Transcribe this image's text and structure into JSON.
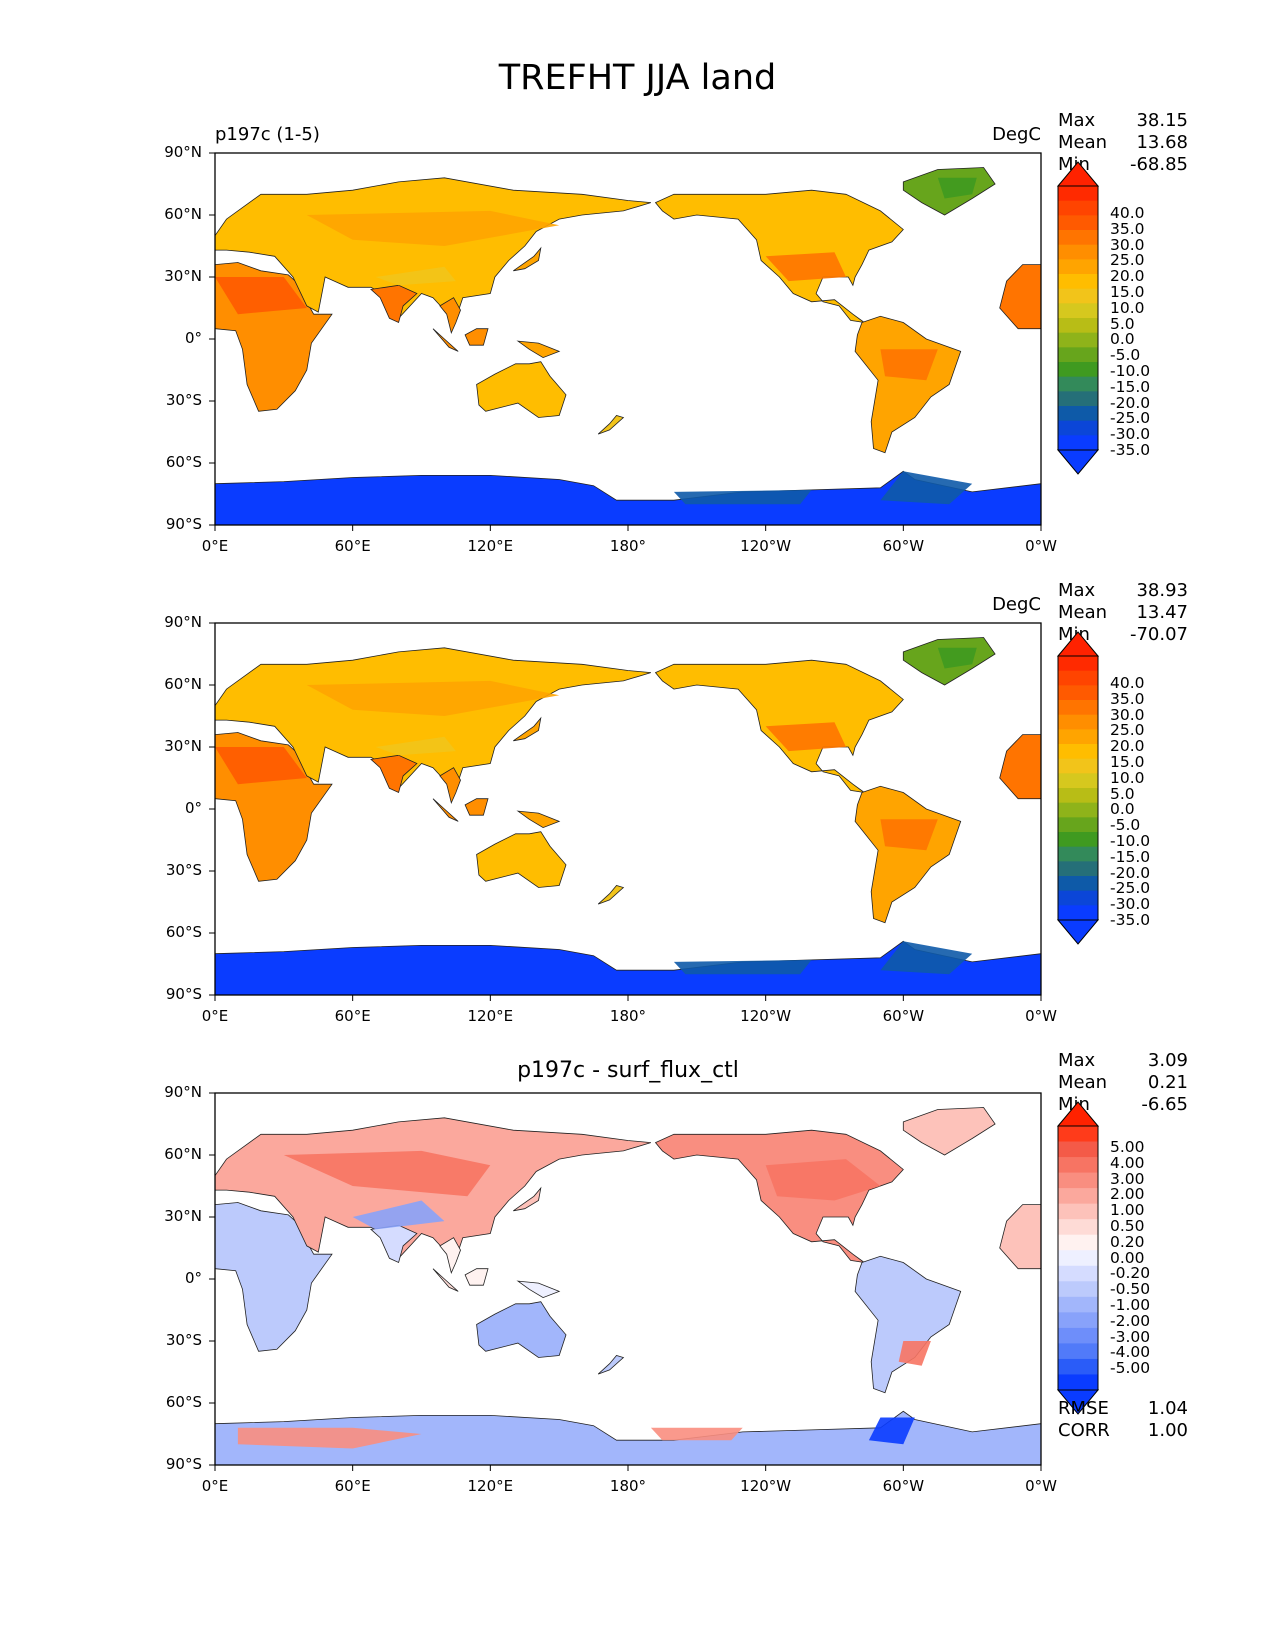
{
  "figure_title": "TREFHT JJA land",
  "axes": {
    "lat_ticks": [
      "90°N",
      "60°N",
      "30°N",
      "0°",
      "30°S",
      "60°S",
      "90°S"
    ],
    "lon_ticks": [
      "0°E",
      "60°E",
      "120°E",
      "180°",
      "120°W",
      "60°W",
      "0°W"
    ]
  },
  "panels": [
    {
      "name": "test",
      "left_title": "p197c (1-5)",
      "center_title": "",
      "units": "DegC",
      "stats": [
        {
          "label": "Max",
          "value": "38.15"
        },
        {
          "label": "Mean",
          "value": "13.68"
        },
        {
          "label": "Min",
          "value": "-68.85"
        }
      ],
      "colorbar": {
        "labels": [
          "40.0",
          "35.0",
          "30.0",
          "25.0",
          "20.0",
          "15.0",
          "10.0",
          "5.0",
          "0.0",
          "-5.0",
          "-10.0",
          "-15.0",
          "-20.0",
          "-25.0",
          "-30.0",
          "-35.0"
        ],
        "colors": [
          "#ff2a00",
          "#ff4400",
          "#ff5a00",
          "#ff7400",
          "#ff8e00",
          "#ffa400",
          "#ffbd00",
          "#f2c41a",
          "#d6c81e",
          "#b8bd16",
          "#8fb31a",
          "#67a51c",
          "#3f9a20",
          "#338a5a",
          "#256f78",
          "#0e5aa8",
          "#0b46d8",
          "#0a3cff"
        ],
        "extend_top": "#ff2200",
        "extend_bottom": "#0a3cff"
      },
      "metrics": []
    },
    {
      "name": "reference",
      "left_title": "",
      "center_title": "",
      "units": "DegC",
      "stats": [
        {
          "label": "Max",
          "value": "38.93"
        },
        {
          "label": "Mean",
          "value": "13.47"
        },
        {
          "label": "Min",
          "value": "-70.07"
        }
      ],
      "colorbar": {
        "labels": [
          "40.0",
          "35.0",
          "30.0",
          "25.0",
          "20.0",
          "15.0",
          "10.0",
          "5.0",
          "0.0",
          "-5.0",
          "-10.0",
          "-15.0",
          "-20.0",
          "-25.0",
          "-30.0",
          "-35.0"
        ],
        "colors": [
          "#ff2a00",
          "#ff4400",
          "#ff5a00",
          "#ff7400",
          "#ff8e00",
          "#ffa400",
          "#ffbd00",
          "#f2c41a",
          "#d6c81e",
          "#b8bd16",
          "#8fb31a",
          "#67a51c",
          "#3f9a20",
          "#338a5a",
          "#256f78",
          "#0e5aa8",
          "#0b46d8",
          "#0a3cff"
        ],
        "extend_top": "#ff2200",
        "extend_bottom": "#0a3cff"
      },
      "metrics": []
    },
    {
      "name": "difference",
      "left_title": "",
      "center_title": "p197c - surf_flux_ctl",
      "units": "",
      "stats": [
        {
          "label": "Max",
          "value": "3.09"
        },
        {
          "label": "Mean",
          "value": "0.21"
        },
        {
          "label": "Min",
          "value": "-6.65"
        }
      ],
      "colorbar": {
        "labels": [
          "5.00",
          "4.00",
          "3.00",
          "2.00",
          "1.00",
          "0.50",
          "0.20",
          "0.00",
          "-0.20",
          "-0.50",
          "-1.00",
          "-2.00",
          "-3.00",
          "-4.00",
          "-5.00"
        ],
        "colors": [
          "#ff3b1a",
          "#f45a48",
          "#f77463",
          "#f98e80",
          "#fba89d",
          "#fdc2ba",
          "#fedbd6",
          "#fff2f0",
          "#eef0ff",
          "#d5dcff",
          "#bccafc",
          "#a2b6fb",
          "#88a2fa",
          "#6e8efa",
          "#517af9",
          "#2a5cf8",
          "#0a3cff"
        ],
        "extend_top": "#ff2200",
        "extend_bottom": "#0a3cff"
      },
      "metrics": [
        {
          "label": "RMSE",
          "value": "1.04"
        },
        {
          "label": "CORR",
          "value": "1.00"
        }
      ]
    }
  ]
}
